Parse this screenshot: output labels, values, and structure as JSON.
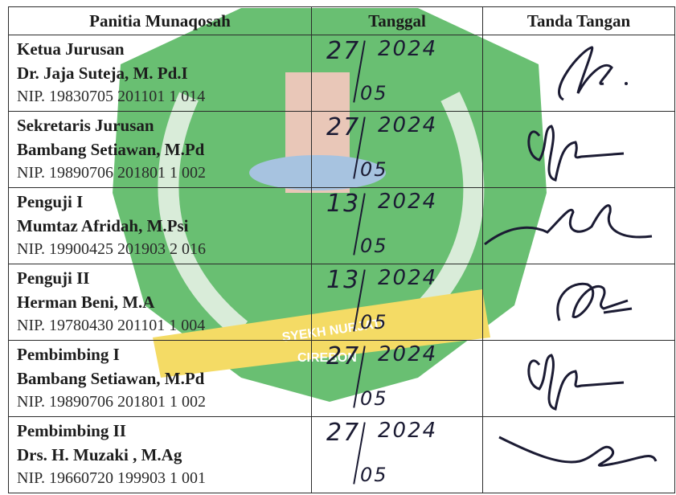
{
  "headers": {
    "committee": "Panitia Munaqosah",
    "date": "Tanggal",
    "signature": "Tanda Tangan"
  },
  "rows": [
    {
      "role": "Ketua Jurusan",
      "name": "Dr. Jaja Suteja, M. Pd.I",
      "nip": "NIP. 19830705 201101 1 014",
      "day": "27",
      "year": "2024",
      "month": "05"
    },
    {
      "role": "Sekretaris Jurusan",
      "name": "Bambang Setiawan, M.Pd",
      "nip": "NIP. 19890706 201801 1 002",
      "day": "27",
      "year": "2024",
      "month": "05"
    },
    {
      "role": "Penguji I",
      "name": "Mumtaz Afridah, M.Psi",
      "nip": "NIP. 19900425 201903 2 016",
      "day": "13",
      "year": "2024",
      "month": "05"
    },
    {
      "role": "Penguji II",
      "name": "Herman Beni, M.A",
      "nip": "NIP. 19780430 201101 1 004",
      "day": "13",
      "year": "2024",
      "month": "05"
    },
    {
      "role": "Pembimbing I",
      "name": "Bambang Setiawan, M.Pd",
      "nip": "NIP. 19890706 201801 1 002",
      "day": "27",
      "year": "2024",
      "month": "05"
    },
    {
      "role": "Pembimbing II",
      "name": "Drs. H. Muzaki , M.Ag",
      "nip": "NIP. 19660720 199903 1 001",
      "day": "27",
      "year": "2024",
      "month": "05"
    }
  ],
  "watermark": {
    "text1": "SYEKH NURJATI",
    "text2": "CIREBON",
    "color": "#2e9a3c",
    "accent": "#f2d23a"
  },
  "ink_color": "#1b1b33"
}
